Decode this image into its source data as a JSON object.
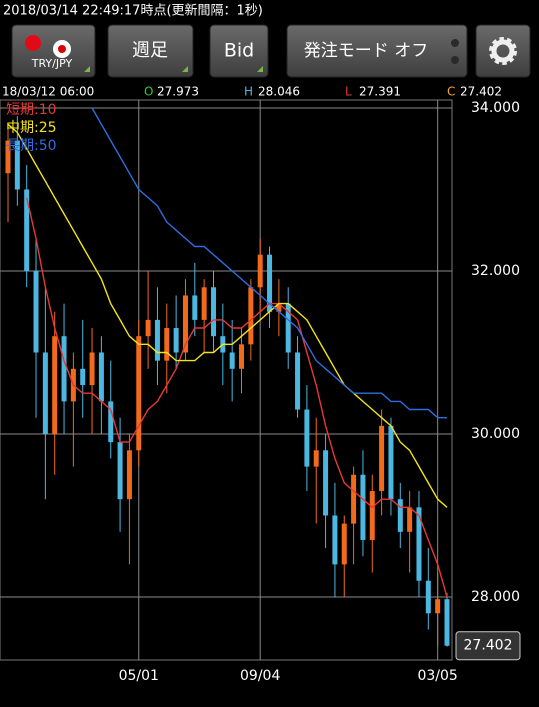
{
  "status": "2018/03/14 22:49:17時点(更新間隔：1秒)",
  "buttons": {
    "pair": "TRY/JPY",
    "period": "週足",
    "side": "Bid",
    "order_mode": "発注モード オフ"
  },
  "info": {
    "date": "18/03/12 06:00",
    "open": {
      "label": "O",
      "value": "27.973"
    },
    "high": {
      "label": "H",
      "value": "28.046"
    },
    "low": {
      "label": "L",
      "value": "27.391"
    },
    "close": {
      "label": "C",
      "value": "27.402"
    }
  },
  "chart_data": {
    "type": "candlestick",
    "up_color": "#f26b1d",
    "down_color": "#4cb8e2",
    "categories": [
      null,
      null,
      null,
      null,
      null,
      null,
      null,
      null,
      null,
      null,
      null,
      null,
      null,
      null,
      "05/01",
      null,
      null,
      null,
      null,
      null,
      null,
      null,
      null,
      null,
      null,
      null,
      null,
      "09/04",
      null,
      null,
      null,
      null,
      null,
      null,
      null,
      null,
      null,
      null,
      null,
      null,
      null,
      null,
      null,
      null,
      null,
      null,
      "03/05",
      null
    ],
    "open": [
      33.2,
      33.6,
      33.0,
      32.0,
      31.0,
      30.0,
      31.2,
      30.4,
      30.8,
      30.6,
      31.0,
      30.4,
      29.9,
      29.2,
      29.8,
      31.2,
      31.4,
      30.9,
      31.3,
      31.0,
      31.7,
      31.4,
      31.8,
      31.2,
      31.0,
      30.8,
      31.1,
      31.8,
      32.2,
      31.5,
      31.6,
      31.0,
      30.3,
      29.6,
      29.8,
      29.0,
      28.4,
      28.9,
      29.5,
      28.7,
      29.3,
      30.1,
      29.2,
      28.8,
      29.1,
      28.2,
      27.8,
      27.973
    ],
    "high": [
      33.8,
      33.9,
      33.3,
      32.4,
      31.8,
      31.5,
      31.6,
      31.0,
      31.4,
      31.3,
      31.2,
      30.9,
      30.2,
      30.0,
      31.4,
      32.0,
      31.8,
      31.6,
      31.7,
      31.9,
      32.1,
      31.9,
      32.0,
      31.6,
      31.4,
      31.3,
      31.9,
      32.4,
      32.3,
      31.9,
      31.8,
      31.2,
      30.6,
      30.2,
      30.0,
      29.4,
      29.0,
      29.6,
      29.8,
      29.5,
      30.3,
      30.2,
      29.4,
      29.3,
      29.3,
      28.6,
      28.3,
      28.046
    ],
    "low": [
      32.6,
      32.8,
      31.8,
      30.2,
      29.2,
      29.5,
      30.0,
      29.6,
      30.2,
      30.0,
      30.0,
      29.7,
      28.8,
      28.4,
      29.6,
      30.8,
      30.6,
      30.5,
      30.8,
      30.9,
      31.2,
      31.0,
      31.0,
      30.6,
      30.4,
      30.5,
      30.9,
      31.5,
      31.3,
      31.2,
      30.8,
      30.2,
      29.3,
      28.9,
      28.6,
      28.0,
      28.0,
      28.4,
      28.5,
      28.3,
      29.0,
      29.0,
      28.6,
      28.3,
      28.0,
      27.6,
      27.4,
      27.391
    ],
    "close": [
      33.6,
      33.0,
      32.0,
      31.0,
      30.0,
      31.2,
      30.4,
      30.8,
      30.6,
      31.0,
      30.4,
      29.9,
      29.2,
      29.8,
      31.2,
      31.4,
      30.9,
      31.3,
      31.0,
      31.7,
      31.4,
      31.8,
      31.2,
      31.0,
      30.8,
      31.1,
      31.8,
      32.2,
      31.5,
      31.6,
      31.0,
      30.3,
      29.6,
      29.8,
      29.0,
      28.4,
      28.9,
      29.5,
      28.7,
      29.3,
      30.1,
      29.2,
      28.8,
      29.1,
      28.2,
      27.8,
      27.973,
      27.402
    ],
    "series": [
      {
        "name": "短期:10",
        "color": "#e53935",
        "values": [
          null,
          null,
          32.9,
          32.4,
          31.8,
          31.3,
          30.9,
          30.6,
          30.5,
          30.5,
          30.4,
          30.3,
          29.9,
          29.9,
          30.1,
          30.3,
          30.4,
          30.6,
          30.8,
          31.1,
          31.3,
          31.3,
          31.4,
          31.4,
          31.3,
          31.3,
          31.4,
          31.5,
          31.6,
          31.6,
          31.5,
          31.4,
          31.0,
          30.6,
          30.1,
          29.7,
          29.4,
          29.3,
          29.2,
          29.1,
          29.2,
          29.2,
          29.1,
          29.1,
          29.0,
          28.7,
          28.4,
          28.0
        ]
      },
      {
        "name": "中期:25",
        "color": "#f5e31a",
        "values": [
          33.8,
          33.7,
          33.5,
          33.3,
          33.1,
          32.9,
          32.7,
          32.5,
          32.3,
          32.1,
          31.9,
          31.6,
          31.4,
          31.2,
          31.1,
          31.1,
          31.0,
          31.0,
          30.9,
          30.9,
          30.9,
          31.0,
          31.0,
          31.1,
          31.1,
          31.2,
          31.3,
          31.4,
          31.5,
          31.6,
          31.6,
          31.5,
          31.4,
          31.2,
          31.0,
          30.8,
          30.6,
          30.5,
          30.4,
          30.3,
          30.2,
          30.1,
          29.9,
          29.8,
          29.6,
          29.4,
          29.2,
          29.1
        ]
      },
      {
        "name": "長期:50",
        "color": "#2f6de0",
        "values": [
          null,
          null,
          null,
          null,
          null,
          null,
          null,
          null,
          null,
          34.0,
          33.8,
          33.6,
          33.4,
          33.2,
          33.0,
          32.9,
          32.8,
          32.6,
          32.5,
          32.4,
          32.3,
          32.3,
          32.2,
          32.1,
          32.0,
          31.9,
          31.8,
          31.7,
          31.6,
          31.5,
          31.4,
          31.3,
          31.1,
          30.9,
          30.8,
          30.7,
          30.6,
          30.5,
          30.5,
          30.5,
          30.5,
          30.4,
          30.4,
          30.3,
          30.3,
          30.3,
          30.2,
          30.2
        ]
      }
    ],
    "ylim": [
      27.227,
      34.098
    ],
    "yticks": [
      {
        "value": 28,
        "label": "28.000"
      },
      {
        "value": 30,
        "label": "30.000"
      },
      {
        "value": 32,
        "label": "32.000"
      },
      {
        "value": 34,
        "label": "34.000"
      }
    ],
    "last_price": 27.402,
    "grid": true
  }
}
